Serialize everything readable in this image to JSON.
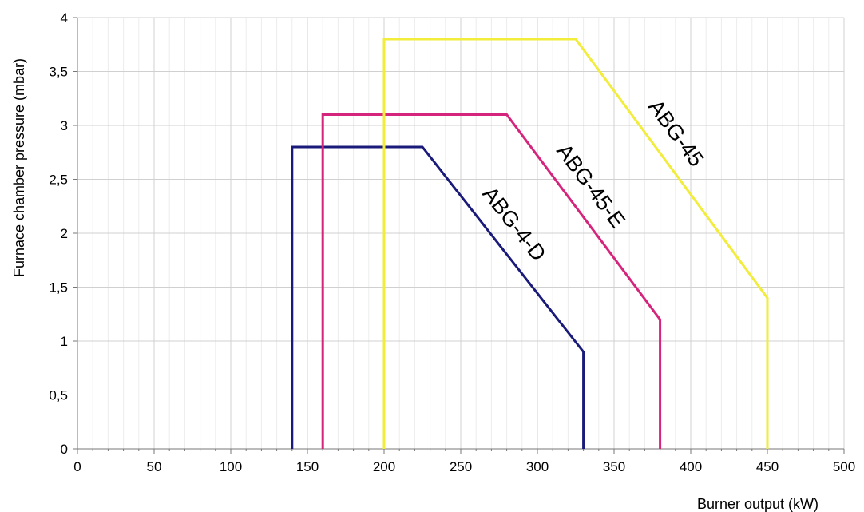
{
  "chart_data": {
    "type": "line",
    "xlabel": "Burner output (kW)",
    "ylabel": "Furnace chamber pressure (mbar)",
    "xlim": [
      0,
      500
    ],
    "ylim": [
      0,
      4
    ],
    "x_ticks": [
      0,
      50,
      100,
      150,
      200,
      250,
      300,
      350,
      400,
      450,
      500
    ],
    "y_ticks": [
      0,
      0.5,
      1,
      1.5,
      2,
      2.5,
      3,
      3.5,
      4
    ],
    "x_tick_labels": [
      "0",
      "50",
      "100",
      "150",
      "200",
      "250",
      "300",
      "350",
      "400",
      "450",
      "500"
    ],
    "y_tick_labels": [
      "0",
      "0,5",
      "1",
      "1,5",
      "2",
      "2,5",
      "3",
      "3,5",
      "4"
    ],
    "grid": true,
    "series": [
      {
        "name": "ABG-4-D",
        "color": "#1a1a7a",
        "x": [
          140,
          140,
          225,
          330,
          330
        ],
        "y": [
          0,
          2.8,
          2.8,
          0.9,
          0
        ]
      },
      {
        "name": "ABG-45-E",
        "color": "#d4247c",
        "x": [
          160,
          160,
          280,
          380,
          380
        ],
        "y": [
          0,
          3.1,
          3.1,
          1.2,
          0
        ]
      },
      {
        "name": "ABG-45",
        "color": "#f2ec3a",
        "x": [
          200,
          200,
          325,
          450,
          450
        ],
        "y": [
          0,
          3.8,
          3.8,
          1.4,
          0
        ]
      }
    ]
  }
}
